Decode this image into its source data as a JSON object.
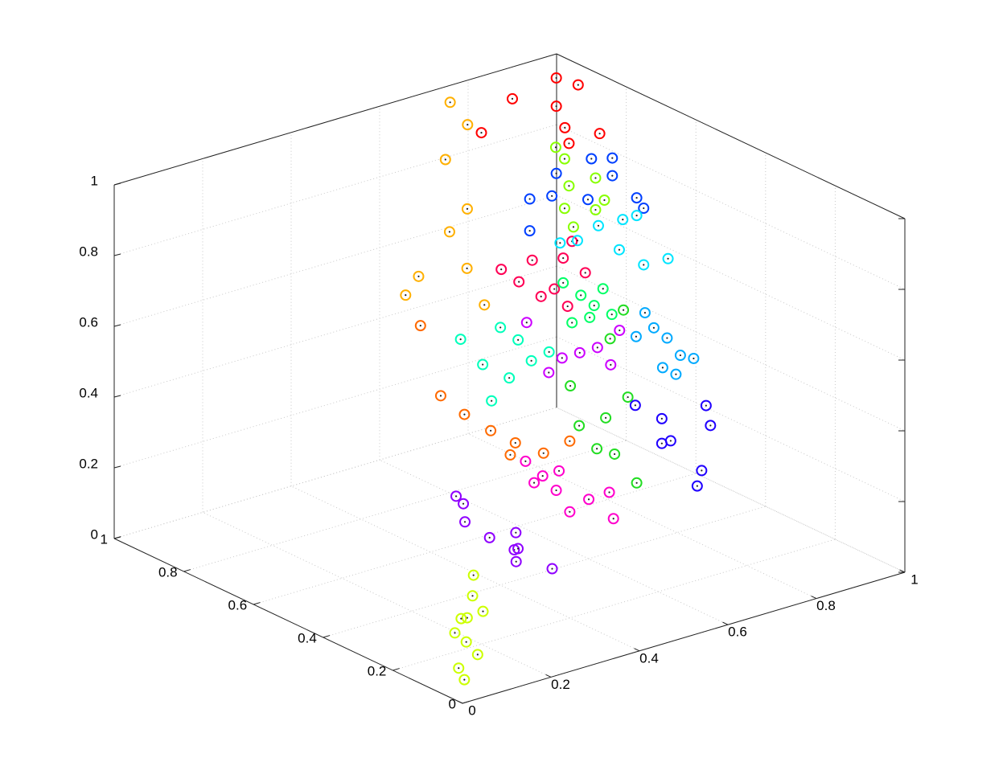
{
  "chart_data": {
    "type": "scatter3d",
    "xlim": [
      0,
      1
    ],
    "ylim": [
      0,
      1
    ],
    "zlim": [
      0,
      1
    ],
    "xticks": [
      0,
      0.2,
      0.4,
      0.6,
      0.8,
      1
    ],
    "yticks": [
      0,
      0.2,
      0.4,
      0.6,
      0.8,
      1
    ],
    "zticks": [
      0,
      0.2,
      0.4,
      0.6,
      0.8,
      1
    ],
    "grid": true,
    "series": [
      {
        "color": "#ccff00",
        "x": [
          0.015,
          0.04,
          0.05,
          0.07,
          0.08,
          0.03,
          0.07,
          0.02,
          0.06,
          0.05
        ],
        "y": [
          0.03,
          0.04,
          0.05,
          0.06,
          0.07,
          0.06,
          0.03,
          0.02,
          0.08,
          0.02
        ],
        "z": [
          0.08,
          0.14,
          0.2,
          0.25,
          0.3,
          0.16,
          0.22,
          0.05,
          0.18,
          0.11
        ]
      },
      {
        "color": "#8f00ff",
        "x": [
          0.1,
          0.14,
          0.18,
          0.12,
          0.2,
          0.16,
          0.22,
          0.08,
          0.25
        ],
        "y": [
          0.12,
          0.1,
          0.08,
          0.15,
          0.1,
          0.05,
          0.12,
          0.12,
          0.06
        ],
        "z": [
          0.42,
          0.37,
          0.33,
          0.45,
          0.28,
          0.4,
          0.3,
          0.5,
          0.26
        ]
      },
      {
        "color": "#ff00cc",
        "x": [
          0.28,
          0.33,
          0.38,
          0.3,
          0.42,
          0.36,
          0.45,
          0.26,
          0.4
        ],
        "y": [
          0.15,
          0.15,
          0.12,
          0.2,
          0.1,
          0.18,
          0.15,
          0.1,
          0.2
        ],
        "z": [
          0.45,
          0.41,
          0.38,
          0.48,
          0.32,
          0.44,
          0.36,
          0.5,
          0.3
        ]
      },
      {
        "color": "#ff6a00",
        "x": [
          0.3,
          0.34,
          0.28,
          0.38,
          0.25,
          0.36,
          0.22,
          0.4
        ],
        "y": [
          0.3,
          0.28,
          0.35,
          0.25,
          0.38,
          0.32,
          0.4,
          0.2
        ],
        "z": [
          0.52,
          0.48,
          0.55,
          0.45,
          0.6,
          0.42,
          0.8,
          0.5
        ]
      },
      {
        "color": "#ffb000",
        "x": [
          0.72,
          0.72,
          0.67,
          0.68,
          0.64,
          0.64,
          0.57,
          0.64,
          0.58
        ],
        "y": [
          0.95,
          0.9,
          0.9,
          0.85,
          0.85,
          0.8,
          0.85,
          0.75,
          0.9
        ],
        "z": [
          0.99,
          0.95,
          0.87,
          0.75,
          0.7,
          0.62,
          0.6,
          0.54,
          0.52
        ]
      },
      {
        "color": "#ff0000",
        "x": [
          0.96,
          0.96,
          0.94,
          0.91,
          0.97,
          0.9,
          0.83,
          0.94
        ],
        "y": [
          0.95,
          0.95,
          0.9,
          0.85,
          0.9,
          1,
          1,
          0.8
        ],
        "z": [
          0.97,
          0.89,
          0.86,
          0.85,
          0.97,
          0.91,
          0.84,
          0.89
        ]
      },
      {
        "color": "#ff0055",
        "x": [
          0.63,
          0.56,
          0.7,
          0.6,
          0.68,
          0.71,
          0.65,
          0.75,
          0.72
        ],
        "y": [
          0.6,
          0.6,
          0.6,
          0.6,
          0.6,
          0.6,
          0.6,
          0.6,
          0.6
        ],
        "z": [
          0.74,
          0.74,
          0.72,
          0.69,
          0.64,
          0.58,
          0.63,
          0.66,
          0.76
        ]
      },
      {
        "color": "#88ff00",
        "x": [
          0.9,
          0.91,
          0.97,
          0.9,
          0.99,
          0.92,
          0.88,
          0.97
        ],
        "y": [
          0.85,
          0.85,
          0.85,
          0.85,
          0.85,
          0.85,
          0.85,
          0.85
        ],
        "z": [
          0.81,
          0.73,
          0.73,
          0.67,
          0.66,
          0.61,
          0.85,
          0.64
        ]
      },
      {
        "color": "#0040ff",
        "x": [
          0.9,
          0.9,
          1,
          1,
          1,
          1,
          1,
          0.96,
          0.95,
          1
        ],
        "y": [
          0.95,
          0.95,
          0.9,
          0.84,
          0.77,
          0.75,
          0.91,
          0.95,
          0.95,
          0.84
        ],
        "z": [
          0.65,
          0.56,
          0.75,
          0.78,
          0.7,
          0.68,
          0.63,
          0.7,
          0.64,
          0.73
        ]
      },
      {
        "color": "#00e5ff",
        "x": [
          1,
          1,
          1,
          1,
          1,
          1,
          1,
          1
        ],
        "y": [
          0.81,
          0.77,
          0.75,
          0.68,
          0.82,
          0.94,
          0.99,
          0.88
        ],
        "z": [
          0.62,
          0.65,
          0.52,
          0.57,
          0.53,
          0.5,
          0.47,
          0.57
        ]
      },
      {
        "color": "#00aaff",
        "x": [
          0.57,
          0.59,
          0.62,
          0.65,
          0.68,
          0.61,
          0.55,
          0.64
        ],
        "y": [
          0.2,
          0.2,
          0.2,
          0.2,
          0.2,
          0.2,
          0.2,
          0.2
        ],
        "z": [
          0.8,
          0.75,
          0.71,
          0.65,
          0.63,
          0.63,
          0.74,
          0.6
        ]
      },
      {
        "color": "#2000ff",
        "x": [
          0.59,
          0.6,
          0.49,
          0.51,
          0.58,
          0.57,
          0.43,
          0.49
        ],
        "y": [
          0.05,
          0.05,
          0.05,
          0.05,
          0.05,
          0.05,
          0.05,
          0.05
        ],
        "z": [
          0.6,
          0.54,
          0.6,
          0.53,
          0.42,
          0.38,
          0.66,
          0.53
        ]
      },
      {
        "color": "#22dd22",
        "x": [
          0.5,
          0.56,
          0.54,
          0.58,
          0.61,
          0.63,
          0.57,
          0.48,
          0.6
        ],
        "y": [
          0.3,
          0.3,
          0.3,
          0.3,
          0.3,
          0.3,
          0.3,
          0.3,
          0.3
        ],
        "z": [
          0.46,
          0.46,
          0.38,
          0.35,
          0.5,
          0.25,
          0.68,
          0.58,
          0.75
        ]
      },
      {
        "color": "#00ff66",
        "x": [
          0.74,
          0.77,
          0.76,
          0.79,
          0.72,
          0.81,
          0.7
        ],
        "y": [
          0.6,
          0.6,
          0.6,
          0.6,
          0.6,
          0.6,
          0.6
        ],
        "z": [
          0.6,
          0.56,
          0.53,
          0.6,
          0.53,
          0.52,
          0.65
        ]
      },
      {
        "color": "#00ffbb",
        "x": [
          0.44,
          0.48,
          0.51,
          0.4,
          0.46,
          0.55,
          0.35,
          0.42
        ],
        "y": [
          0.45,
          0.45,
          0.45,
          0.45,
          0.45,
          0.45,
          0.45,
          0.45
        ],
        "z": [
          0.69,
          0.64,
          0.57,
          0.6,
          0.54,
          0.58,
          0.69,
          0.49
        ]
      },
      {
        "color": "#cc00ff",
        "x": [
          0.58,
          0.62,
          0.54,
          0.65,
          0.51,
          0.67,
          0.46
        ],
        "y": [
          0.4,
          0.4,
          0.4,
          0.4,
          0.4,
          0.4,
          0.4
        ],
        "z": [
          0.59,
          0.59,
          0.59,
          0.53,
          0.56,
          0.62,
          0.72
        ]
      }
    ]
  }
}
